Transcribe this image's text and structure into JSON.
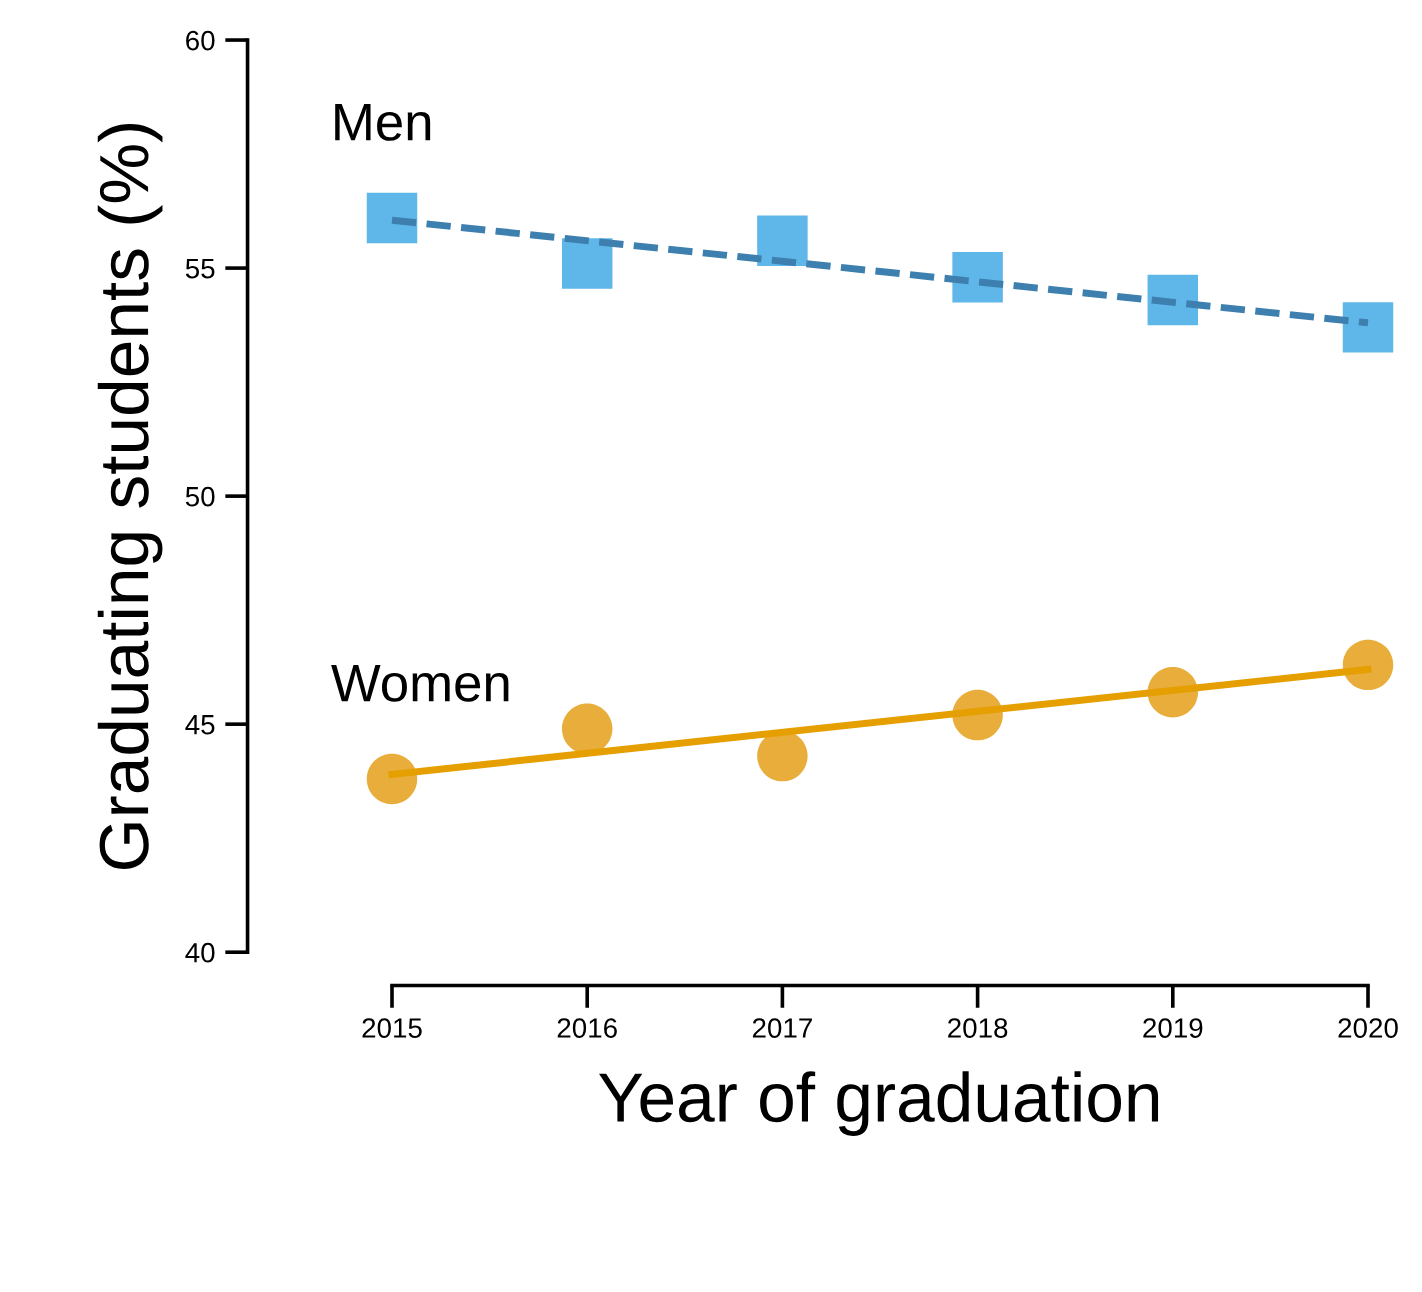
{
  "chart_data": {
    "type": "scatter",
    "xlabel": "Year of graduation",
    "ylabel": "Graduating students (%)",
    "xlim": [
      2015,
      2020
    ],
    "xticks": [
      2015,
      2016,
      2017,
      2018,
      2019,
      2020
    ],
    "ylim": [
      40,
      60
    ],
    "yticks": [
      40,
      45,
      50,
      55,
      60
    ],
    "grid": false,
    "legend": false,
    "series": [
      {
        "name": "Men",
        "marker": "square",
        "color": "#5fb6e8",
        "x": [
          2015,
          2016,
          2017,
          2018,
          2019,
          2020
        ],
        "values": [
          56.1,
          55.1,
          55.6,
          54.8,
          54.3,
          53.7
        ]
      },
      {
        "type": "line",
        "line_style": "dashed",
        "marker": "none",
        "color": "#3d7fae",
        "x": [
          2015,
          2020
        ],
        "values": [
          56.05,
          53.8
        ]
      },
      {
        "name": "Women",
        "marker": "circle",
        "color": "#e8ad3a",
        "x": [
          2015,
          2016,
          2017,
          2018,
          2019,
          2020
        ],
        "values": [
          43.8,
          44.9,
          44.3,
          45.2,
          45.7,
          46.3
        ]
      },
      {
        "type": "line",
        "line_style": "solid",
        "marker": "none",
        "color": "#e69f00",
        "x": [
          2015,
          2020
        ],
        "values": [
          43.9,
          46.2
        ]
      }
    ]
  }
}
